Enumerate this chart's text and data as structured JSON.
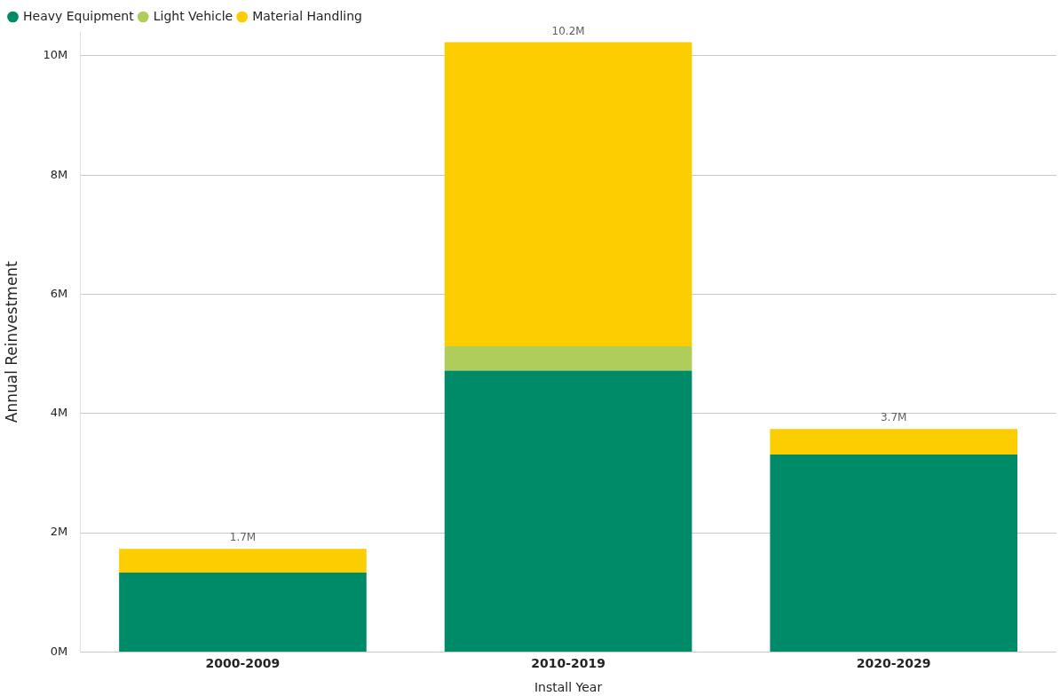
{
  "chart_data": {
    "type": "bar",
    "stacked": true,
    "xlabel": "Install Year",
    "ylabel": "Annual Reinvestment",
    "categories": [
      "2000-2009",
      "2010-2019",
      "2020-2029"
    ],
    "series": [
      {
        "name": "Heavy Equipment",
        "color": "#008b68",
        "values": [
          1.33,
          4.72,
          3.31
        ]
      },
      {
        "name": "Light Vehicle",
        "color": "#aecd5a",
        "values": [
          null,
          0.41,
          null
        ]
      },
      {
        "name": "Material Handling",
        "color": "#fccd00",
        "values": [
          0.4,
          5.1,
          0.43
        ]
      }
    ],
    "ylim": [
      0,
      10.4
    ],
    "yticks": [
      {
        "value": 0,
        "label": "0M"
      },
      {
        "value": 2,
        "label": "2M"
      },
      {
        "value": 4,
        "label": "4M"
      },
      {
        "value": 6,
        "label": "6M"
      },
      {
        "value": 8,
        "label": "8M"
      },
      {
        "value": 10,
        "label": "10M"
      }
    ],
    "totals": [
      "1.7M",
      "10.2M",
      "3.7M"
    ],
    "grid": "y",
    "legend": "top left"
  }
}
